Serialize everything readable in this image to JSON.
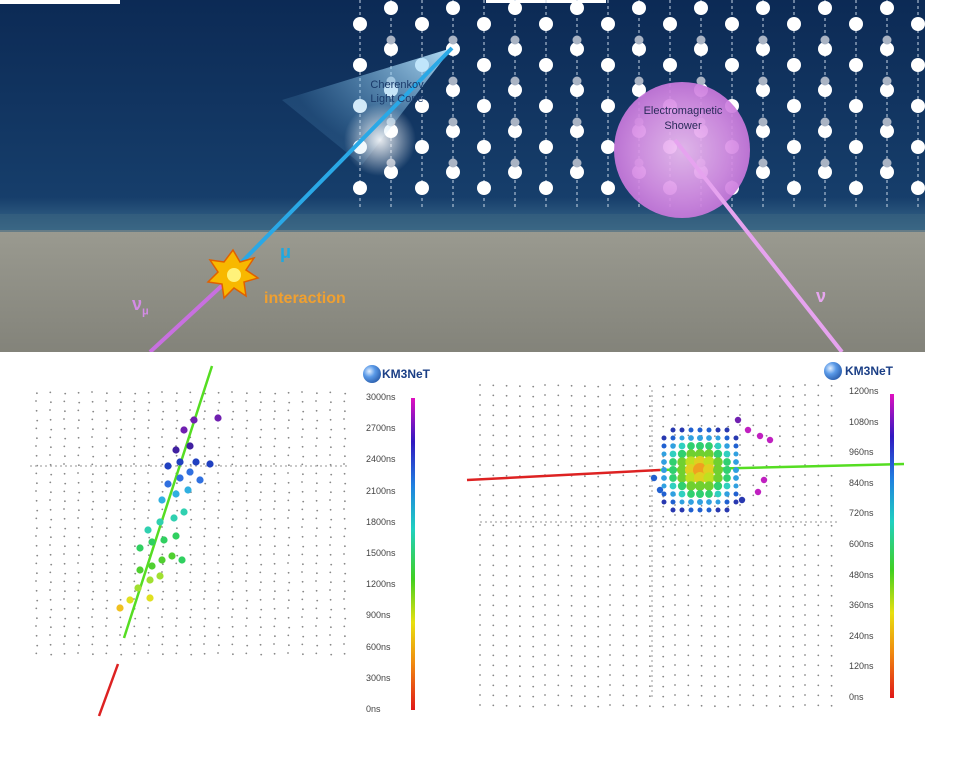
{
  "labels": {
    "cherenkov_line1": "Cherenkov",
    "cherenkov_line2": "Light Cone",
    "shower_line1": "Electromagnetic",
    "shower_line2": "Shower",
    "muon": "μ",
    "neutrino": "ν",
    "muon_neutrino_main": "ν",
    "muon_neutrino_sub": "μ",
    "interaction": "interaction"
  },
  "left_panel": {
    "brand": "KM3NeT",
    "colorbar_ticks": [
      "3000ns",
      "2700ns",
      "2400ns",
      "2100ns",
      "1800ns",
      "1500ns",
      "1200ns",
      "900ns",
      "600ns",
      "300ns",
      "0ns"
    ]
  },
  "right_panel": {
    "brand": "KM3NeT",
    "colorbar_ticks": [
      "1200ns",
      "1080ns",
      "960ns",
      "840ns",
      "720ns",
      "600ns",
      "480ns",
      "360ns",
      "240ns",
      "120ns",
      "0ns"
    ]
  },
  "colors": {
    "sea": "#0d2b55",
    "seabed": "#8e8e84",
    "muon_track": "#2aa8e6",
    "neutrino_track": "#e6a3ef",
    "interaction": "#f0a030",
    "fit_track": "#55dd22",
    "incoming_track": "#dd2222"
  }
}
